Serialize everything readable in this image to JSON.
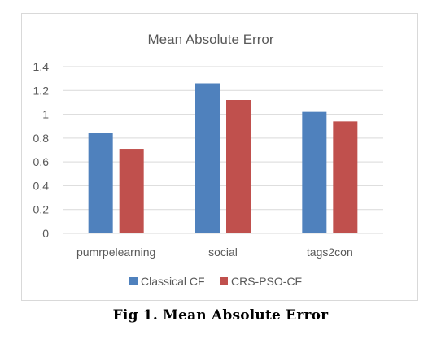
{
  "caption": "Fig 1. Mean Absolute Error",
  "chart_data": {
    "type": "bar",
    "title": "Mean Absolute Error",
    "xlabel": "",
    "ylabel": "",
    "categories": [
      "pumrpelearning",
      "social",
      "tags2con"
    ],
    "series": [
      {
        "name": "Classical CF",
        "color": "#4f81bd",
        "values": [
          0.84,
          1.26,
          1.02
        ]
      },
      {
        "name": "CRS-PSO-CF",
        "color": "#c0504d",
        "values": [
          0.71,
          1.12,
          0.94
        ]
      }
    ],
    "ylim": [
      0,
      1.4
    ],
    "yticks": [
      "0",
      "0.2",
      "0.4",
      "0.6",
      "0.8",
      "1",
      "1.2",
      "1.4"
    ],
    "grid": true,
    "legend": "bottom"
  }
}
